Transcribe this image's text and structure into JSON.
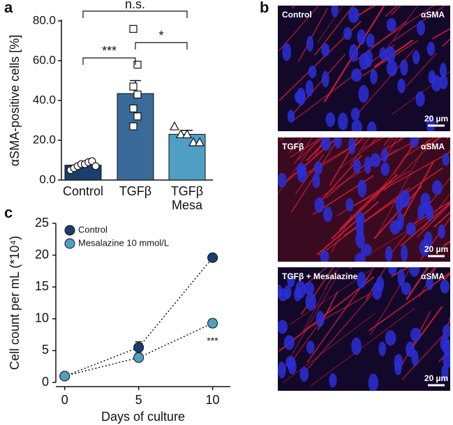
{
  "chart_data": [
    {
      "type": "bar",
      "panel": "a",
      "ylabel": "αSMA-positive cells [%]",
      "categories": [
        "Control",
        "TGFβ",
        "TGFβ\nMesa"
      ],
      "values": [
        7.5,
        43.5,
        23
      ],
      "errors": [
        1,
        6.5,
        2
      ],
      "colors": [
        "#1b3f6b",
        "#3a6a9a",
        "#4f9ec4"
      ],
      "markers": [
        "circle",
        "square",
        "triangle"
      ],
      "points": [
        [
          5,
          6,
          7,
          8,
          8,
          9,
          9.5,
          7
        ],
        [
          76,
          58,
          47,
          43,
          36,
          32,
          27
        ],
        [
          27,
          23,
          23,
          19,
          19
        ]
      ],
      "ylim": [
        0,
        80
      ],
      "yticks": [
        {
          "value": 0,
          "label": "0.0"
        },
        {
          "value": 20,
          "label": "20.0"
        },
        {
          "value": 40,
          "label": "40.0"
        },
        {
          "value": 60,
          "label": "60.0"
        },
        {
          "value": 80,
          "label": "80.0"
        }
      ],
      "brackets": [
        {
          "from": 0,
          "to": 1,
          "label": "***"
        },
        {
          "from": 1,
          "to": 2,
          "label": "*"
        },
        {
          "from": 0,
          "to": 2,
          "label": "n.s."
        }
      ]
    },
    {
      "type": "line",
      "panel": "c",
      "xlabel": "Days of culture",
      "ylabel": "Cell count per mL (*10⁴)",
      "x": [
        0,
        5,
        10
      ],
      "series": [
        {
          "name": "Control",
          "color": "#1a3e6e",
          "values": [
            1,
            5.5,
            19.6
          ],
          "errors": [
            0.1,
            0.9,
            0.3
          ]
        },
        {
          "name": "Mesalazine 10 mmol/L",
          "color": "#4fa0c0",
          "values": [
            1,
            3.9,
            9.3
          ],
          "errors": [
            0.1,
            0.3,
            0.6
          ]
        }
      ],
      "xlim": [
        -0.6,
        11.2
      ],
      "xticks": [
        0,
        5,
        10
      ],
      "ylim": [
        0,
        25
      ],
      "yticks": [
        0,
        5,
        10,
        15,
        20,
        25
      ],
      "legend": "upper left",
      "annotation": "***"
    }
  ],
  "image_panel": {
    "panel": "b",
    "images": [
      {
        "condition": "Control",
        "stain": "αSMA",
        "scale_bar": "20 µm"
      },
      {
        "condition": "TGFβ",
        "stain": "αSMA",
        "scale_bar": "20 µm"
      },
      {
        "condition": "TGFβ + Mesalazine",
        "stain": "αSMA",
        "scale_bar": "20 µm"
      }
    ]
  }
}
